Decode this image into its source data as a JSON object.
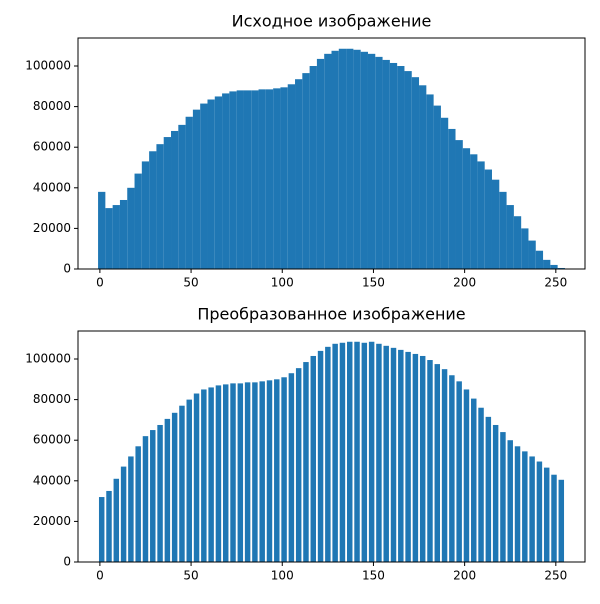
{
  "chart_data": [
    {
      "type": "bar",
      "title": "Исходное изображение",
      "color": "#1f77b4",
      "x": [
        1,
        5,
        9,
        13,
        17,
        21,
        25,
        29,
        33,
        37,
        41,
        45,
        49,
        53,
        57,
        61,
        65,
        69,
        73,
        77,
        81,
        85,
        89,
        93,
        97,
        101,
        105,
        109,
        113,
        117,
        121,
        125,
        129,
        133,
        137,
        141,
        145,
        149,
        153,
        157,
        161,
        165,
        169,
        173,
        177,
        181,
        185,
        189,
        193,
        197,
        201,
        205,
        209,
        213,
        217,
        221,
        225,
        229,
        233,
        237,
        241,
        245,
        249,
        253
      ],
      "values": [
        38000,
        30000,
        31500,
        34000,
        40000,
        47000,
        53000,
        58000,
        61500,
        65000,
        68000,
        71000,
        75000,
        78500,
        81500,
        83500,
        85000,
        86500,
        87500,
        88000,
        88000,
        88000,
        88500,
        88500,
        89000,
        89500,
        91000,
        93500,
        96500,
        100000,
        103500,
        106000,
        107500,
        108500,
        108500,
        108000,
        107000,
        106000,
        104500,
        103000,
        101500,
        100000,
        97500,
        94500,
        90500,
        86000,
        80500,
        74500,
        69000,
        63500,
        59500,
        56500,
        53000,
        49000,
        44000,
        38000,
        31500,
        26000,
        20000,
        14000,
        9000,
        4500,
        2000,
        500
      ],
      "xlim": [
        -12,
        266
      ],
      "xticks": [
        0,
        50,
        100,
        150,
        200,
        250
      ],
      "ylim": [
        0,
        113800
      ],
      "yticks": [
        0,
        20000,
        40000,
        60000,
        80000,
        100000
      ]
    },
    {
      "type": "bar",
      "title": "Преобразованное изображение",
      "color": "#1f77b4",
      "x": [
        1,
        5,
        9,
        13,
        17,
        21,
        25,
        29,
        33,
        37,
        41,
        45,
        49,
        53,
        57,
        61,
        65,
        69,
        73,
        77,
        81,
        85,
        89,
        93,
        97,
        101,
        105,
        109,
        113,
        117,
        121,
        125,
        129,
        133,
        137,
        141,
        145,
        149,
        153,
        157,
        161,
        165,
        169,
        173,
        177,
        181,
        185,
        189,
        193,
        197,
        201,
        205,
        209,
        213,
        217,
        221,
        225,
        229,
        233,
        237,
        241,
        245,
        249,
        253
      ],
      "values": [
        32000,
        35000,
        41000,
        47000,
        52000,
        57000,
        62000,
        65000,
        67500,
        70500,
        73500,
        77000,
        80000,
        83000,
        85000,
        86000,
        87000,
        87500,
        88000,
        88000,
        88500,
        88500,
        89000,
        89500,
        90000,
        91000,
        93000,
        95500,
        98500,
        101500,
        104000,
        106000,
        107500,
        108000,
        108500,
        108500,
        108000,
        108500,
        107500,
        106500,
        105500,
        104500,
        103500,
        102500,
        101500,
        99500,
        97500,
        95000,
        92000,
        89000,
        85000,
        80500,
        76000,
        71500,
        67500,
        64000,
        60000,
        57000,
        54500,
        52000,
        49500,
        46500,
        43000,
        40500
      ],
      "xlim": [
        -12,
        266
      ],
      "xticks": [
        0,
        50,
        100,
        150,
        200,
        250
      ],
      "ylim": [
        0,
        113800
      ],
      "yticks": [
        0,
        20000,
        40000,
        60000,
        80000,
        100000
      ]
    }
  ]
}
